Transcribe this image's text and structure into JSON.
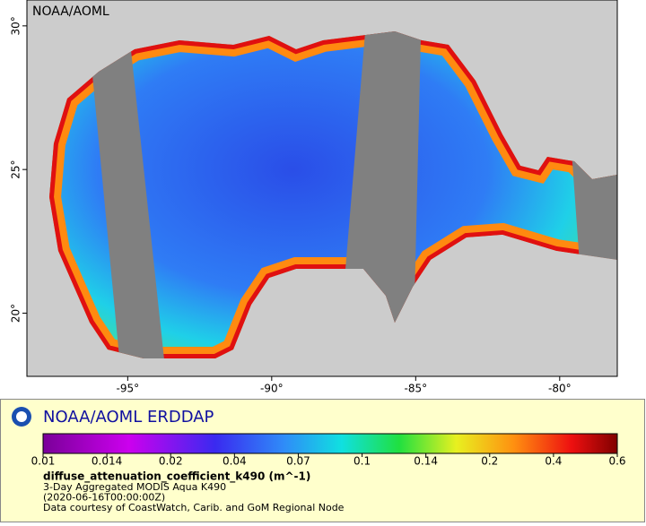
{
  "map": {
    "watermark": "NOAA/AOML",
    "xlim": [
      -98.5,
      -78
    ],
    "ylim": [
      17.8,
      30.9
    ],
    "xticks": [
      {
        "value": -95,
        "label": "-95°"
      },
      {
        "value": -90,
        "label": "-90°"
      },
      {
        "value": -85,
        "label": "-85°"
      },
      {
        "value": -80,
        "label": "-80°"
      }
    ],
    "yticks": [
      {
        "value": 20,
        "label": "20°"
      },
      {
        "value": 25,
        "label": "25°"
      },
      {
        "value": 30,
        "label": "30°"
      }
    ]
  },
  "legend": {
    "title": "NOAA/AOML ERDDAP",
    "colorbar": {
      "ticks": [
        0.01,
        0.014,
        0.02,
        0.04,
        0.07,
        0.1,
        0.14,
        0.2,
        0.4,
        0.6
      ]
    },
    "variable": "diffuse_attenuation_coefficient_k490 (m^-1)",
    "lines": [
      "3-Day Aggregated MODIS Aqua K490",
      "(2020-06-16T00:00:00Z)",
      "Data courtesy of CoastWatch, Carib. and GoM Regional Node"
    ]
  }
}
